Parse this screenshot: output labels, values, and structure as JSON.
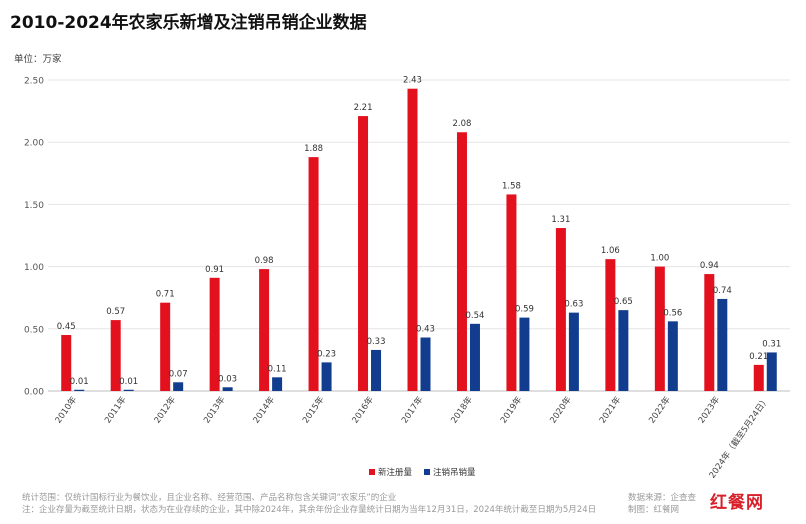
{
  "title": "2010-2024年农家乐新增及注销吊销企业数据",
  "unit_label": "单位：万家",
  "colors": {
    "new": "#e3101e",
    "cancel": "#123d8f",
    "grid": "#e5e5e5",
    "axis": "#bfbfbf",
    "brand": "#d9202a"
  },
  "chart_data": {
    "type": "bar",
    "categories": [
      "2010年",
      "2011年",
      "2012年",
      "2013年",
      "2014年",
      "2015年",
      "2016年",
      "2017年",
      "2018年",
      "2019年",
      "2020年",
      "2021年",
      "2022年",
      "2023年",
      "2024年（截至5月24日）"
    ],
    "series": [
      {
        "name": "新注册量",
        "values": [
          0.45,
          0.57,
          0.71,
          0.91,
          0.98,
          1.88,
          2.21,
          2.43,
          2.08,
          1.58,
          1.31,
          1.06,
          1.0,
          0.94,
          0.21
        ],
        "labels": [
          "0.45",
          "0.57",
          "0.71",
          "0.91",
          "0.98",
          "1.88",
          "2.21",
          "2.43",
          "2.08",
          "1.58",
          "1.31",
          "1.06",
          "1.00",
          "0.94",
          "0.21"
        ]
      },
      {
        "name": "注销吊销量",
        "values": [
          0.01,
          0.01,
          0.07,
          0.03,
          0.11,
          0.23,
          0.33,
          0.43,
          0.54,
          0.59,
          0.63,
          0.65,
          0.56,
          0.74,
          0.31
        ],
        "labels": [
          "0.01",
          "0.01",
          "0.07",
          "0.03",
          "0.11",
          "0.23",
          "0.33",
          "0.43",
          "0.54",
          "0.59",
          "0.63",
          "0.65",
          "0.56",
          "0.74",
          "0.31"
        ]
      }
    ],
    "yticks": [
      "0.00",
      "0.50",
      "1.00",
      "1.50",
      "2.00",
      "2.50"
    ],
    "ylim": [
      0,
      2.5
    ],
    "grid": true,
    "legend_position": "bottom-center"
  },
  "footnotes": {
    "line1": "统计范围：仅统计国标行业为餐饮业，且企业名称、经营范围、产品名称包含关键词“农家乐”的企业",
    "line2": "注：企业存量为截至统计日期，状态为在业存续的企业，其中除2024年，其余年份企业存量统计日期为当年12月31日，2024年统计截至日期为5月24日"
  },
  "source": {
    "line1": "数据来源：企查查",
    "line2": "制图：红餐网"
  },
  "logo_text": "红餐网"
}
